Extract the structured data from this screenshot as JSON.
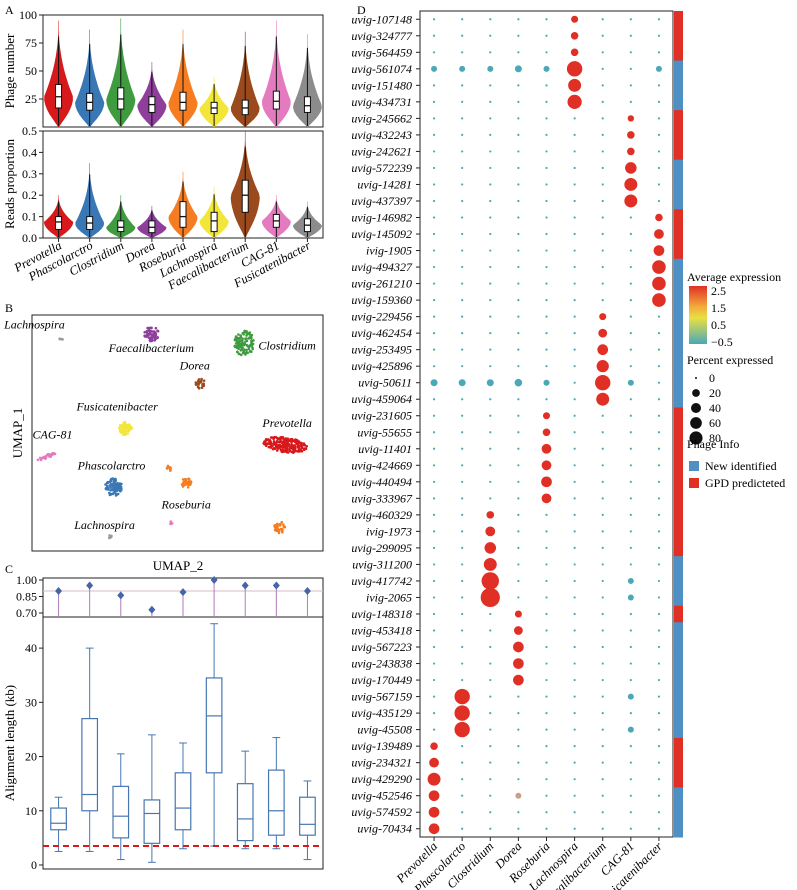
{
  "chart_data": [
    {
      "id": "A_top",
      "type": "violin",
      "panel_label": "A",
      "ylabel": "Phage number",
      "ylim": [
        0,
        100
      ],
      "yticks": [
        25,
        50,
        75,
        100
      ],
      "categories": [
        "Prevotella",
        "Phascolarctro",
        "Clostridium",
        "Dorea",
        "Roseburia",
        "Lachnospira",
        "Faecalibacterium",
        "CAG-81",
        "Fusicatenibacter"
      ],
      "colors": [
        "#d7191c",
        "#3a78b5",
        "#3f9b3f",
        "#8e3f9b",
        "#f57c20",
        "#f2e63a",
        "#9a4a1c",
        "#e57bbf",
        "#8c8c8c"
      ],
      "median": [
        27,
        22,
        25,
        20,
        22,
        17,
        17,
        23,
        19
      ],
      "q1": [
        17,
        15,
        16,
        13,
        15,
        12,
        11,
        16,
        13
      ],
      "q3": [
        38,
        30,
        35,
        27,
        31,
        22,
        24,
        32,
        27
      ],
      "max": [
        95,
        87,
        97,
        58,
        87,
        45,
        85,
        95,
        83
      ]
    },
    {
      "id": "A_bottom",
      "type": "violin",
      "ylabel": "Reads proportion",
      "ylim": [
        0,
        0.5
      ],
      "yticks": [
        0.0,
        0.1,
        0.2,
        0.3,
        0.4,
        0.5
      ],
      "ytick_labels": [
        "0.0",
        "0.1",
        "0.2",
        "0.3",
        "0.4",
        "0.5"
      ],
      "categories": [
        "Prevotella",
        "Phascolarctro",
        "Clostridium",
        "Dorea",
        "Roseburia",
        "Lachnospira",
        "Faecalibacterium",
        "CAG-81",
        "Fusicatenibacter"
      ],
      "median": [
        0.075,
        0.07,
        0.05,
        0.05,
        0.1,
        0.08,
        0.2,
        0.08,
        0.06
      ],
      "q1": [
        0.04,
        0.04,
        0.03,
        0.025,
        0.05,
        0.03,
        0.12,
        0.05,
        0.03
      ],
      "q3": [
        0.1,
        0.1,
        0.08,
        0.08,
        0.17,
        0.12,
        0.27,
        0.11,
        0.09
      ],
      "max": [
        0.2,
        0.35,
        0.2,
        0.15,
        0.31,
        0.24,
        0.5,
        0.2,
        0.17
      ]
    },
    {
      "id": "B",
      "type": "scatter",
      "panel_label": "B",
      "xlabel": "UMAP_2",
      "ylabel": "UMAP_1",
      "clusters": [
        {
          "name": "Lachnospira",
          "x": 0.1,
          "y": 0.1,
          "size": 3,
          "label": "Lachnospira"
        },
        {
          "name": "Faecalibacterium",
          "x": 0.41,
          "y": 0.08,
          "size": 50,
          "label": "Faecalibacterium"
        },
        {
          "name": "Clostridium",
          "x": 0.73,
          "y": 0.12,
          "size": 90,
          "label": "Clostridium"
        },
        {
          "name": "Dorea",
          "x": 0.58,
          "y": 0.29,
          "size": 25,
          "label": "Dorea"
        },
        {
          "name": "Fusicatenibacter",
          "x": 0.32,
          "y": 0.48,
          "size": 40,
          "label": "Fusicatenibacter"
        },
        {
          "name": "Prevotella",
          "x": 0.87,
          "y": 0.55,
          "size": 170,
          "label": "Prevotella"
        },
        {
          "name": "CAG-81",
          "x": 0.05,
          "y": 0.6,
          "size": 30,
          "label": "CAG-81"
        },
        {
          "name": "Phascolarctro",
          "x": 0.28,
          "y": 0.73,
          "size": 70,
          "label": "Phascolarctro"
        },
        {
          "name": "Roseburia",
          "x": 0.53,
          "y": 0.71,
          "size": 25,
          "label": "Roseburia"
        },
        {
          "name": "Lachnospira2",
          "x": 0.27,
          "y": 0.94,
          "size": 5,
          "label": "Lachnospira"
        },
        {
          "name": "orange2",
          "x": 0.85,
          "y": 0.9,
          "size": 30,
          "label": ""
        },
        {
          "name": "orange3",
          "x": 0.47,
          "y": 0.65,
          "size": 8,
          "label": ""
        },
        {
          "name": "pink2",
          "x": 0.48,
          "y": 0.88,
          "size": 5,
          "label": ""
        }
      ]
    },
    {
      "id": "C_top",
      "type": "lollipop",
      "panel_label": "C",
      "ylim": [
        0.7,
        1.0
      ],
      "yticks": [
        0.7,
        0.85,
        1.0
      ],
      "ytick_labels": [
        "0.70",
        "0.85",
        "1.00"
      ],
      "reference_line": 0.9,
      "values": [
        0.9,
        0.95,
        0.86,
        0.73,
        0.89,
        1.0,
        0.95,
        0.95,
        0.9
      ]
    },
    {
      "id": "C_bottom",
      "type": "box",
      "ylabel": "Alignment length (kb)",
      "ylim": [
        0,
        45
      ],
      "yticks": [
        0,
        10,
        20,
        30,
        40
      ],
      "threshold": 3.5,
      "boxes": [
        {
          "min": 2.5,
          "q1": 6.5,
          "median": 7.7,
          "q3": 10.5,
          "max": 12.5
        },
        {
          "min": 2.5,
          "q1": 10,
          "median": 13,
          "q3": 27,
          "max": 40
        },
        {
          "min": 1,
          "q1": 5,
          "median": 9,
          "q3": 14.5,
          "max": 20.5
        },
        {
          "min": 0.5,
          "q1": 4,
          "median": 9.5,
          "q3": 12,
          "max": 24
        },
        {
          "min": 3,
          "q1": 6.5,
          "median": 10.5,
          "q3": 17,
          "max": 22.5
        },
        {
          "min": 3.5,
          "q1": 17,
          "median": 27.5,
          "q3": 34.5,
          "max": 44.5
        },
        {
          "min": 3,
          "q1": 4.5,
          "median": 8.5,
          "q3": 15,
          "max": 21
        },
        {
          "min": 3,
          "q1": 5.5,
          "median": 10,
          "q3": 17.5,
          "max": 23.5
        },
        {
          "min": 1,
          "q1": 5.5,
          "median": 7.5,
          "q3": 12.5,
          "max": 15.5
        }
      ]
    },
    {
      "id": "D",
      "type": "dotplot",
      "panel_label": "D",
      "categories": [
        "Prevotella",
        "Phascolarcto",
        "Clostridium",
        "Dorea",
        "Roseburia",
        "Lachnospira",
        "Faecalibacterium",
        "CAG-81",
        "Fusicatenibacter"
      ],
      "rows": [
        "uvig-107148",
        "uvig-324777",
        "uvig-564459",
        "uvig-561074",
        "uvig-151480",
        "uvig-434731",
        "uvig-245662",
        "uvig-432243",
        "uvig-242621",
        "uvig-572239",
        "uvig-14281",
        "uvig-437397",
        "uvig-146982",
        "uvig-145092",
        "ivig-1905",
        "uvig-494327",
        "uvig-261210",
        "uvig-159360",
        "uvig-229456",
        "uvig-462454",
        "uvig-253495",
        "uvig-425896",
        "uvig-50611",
        "uvig-459064",
        "uvig-231605",
        "uvig-55655",
        "uvig-11401",
        "uvig-424669",
        "uvig-440494",
        "uvig-333967",
        "uvig-460329",
        "ivig-1973",
        "uvig-299095",
        "uvig-311200",
        "uvig-417742",
        "ivig-2065",
        "uvig-148318",
        "uvig-453418",
        "uvig-567223",
        "uvig-243838",
        "uvig-170449",
        "uvig-567159",
        "uvig-435129",
        "uvig-45508",
        "uvig-139489",
        "uvig-234321",
        "uvig-429290",
        "uvig-452546",
        "uvig-574592",
        "uvig-70434"
      ],
      "row_genus": [
        5,
        5,
        5,
        5,
        5,
        5,
        7,
        7,
        7,
        7,
        7,
        7,
        8,
        8,
        8,
        8,
        8,
        8,
        6,
        6,
        6,
        6,
        6,
        6,
        4,
        4,
        4,
        4,
        4,
        4,
        2,
        2,
        2,
        2,
        2,
        2,
        3,
        3,
        3,
        3,
        3,
        1,
        1,
        1,
        0,
        0,
        0,
        0,
        0,
        0
      ],
      "row_pct": [
        8,
        10,
        10,
        60,
        40,
        50,
        6,
        10,
        10,
        30,
        40,
        40,
        10,
        20,
        25,
        45,
        45,
        45,
        8,
        15,
        25,
        35,
        60,
        40,
        8,
        10,
        20,
        20,
        25,
        20,
        10,
        20,
        30,
        40,
        80,
        100,
        8,
        15,
        25,
        25,
        25,
        60,
        60,
        60,
        10,
        20,
        40,
        25,
        25,
        25
      ],
      "row_info": [
        "GPD",
        "GPD",
        "GPD",
        "New",
        "New",
        "New",
        "GPD",
        "GPD",
        "GPD",
        "New",
        "New",
        "New",
        "GPD",
        "GPD",
        "GPD",
        "New",
        "New",
        "New",
        "New",
        "New",
        "New",
        "New",
        "New",
        "New",
        "GPD",
        "GPD",
        "GPD",
        "GPD",
        "GPD",
        "GPD",
        "GPD",
        "GPD",
        "GPD",
        "New",
        "New",
        "New",
        "GPD",
        "New",
        "New",
        "New",
        "New",
        "New",
        "New",
        "New",
        "GPD",
        "GPD",
        "GPD",
        "New",
        "New",
        "New"
      ],
      "scattered_hits": [
        {
          "row": "uvig-561074",
          "col": 0,
          "pct": 5
        },
        {
          "row": "uvig-561074",
          "col": 1,
          "pct": 5
        },
        {
          "row": "uvig-561074",
          "col": 2,
          "pct": 5
        },
        {
          "row": "uvig-561074",
          "col": 3,
          "pct": 8
        },
        {
          "row": "uvig-561074",
          "col": 4,
          "pct": 5
        },
        {
          "row": "uvig-561074",
          "col": 8,
          "pct": 5
        },
        {
          "row": "uvig-50611",
          "col": 0,
          "pct": 8
        },
        {
          "row": "uvig-50611",
          "col": 1,
          "pct": 8
        },
        {
          "row": "uvig-50611",
          "col": 2,
          "pct": 8
        },
        {
          "row": "uvig-50611",
          "col": 3,
          "pct": 10
        },
        {
          "row": "uvig-50611",
          "col": 4,
          "pct": 5
        },
        {
          "row": "uvig-50611",
          "col": 7,
          "pct": 5
        },
        {
          "row": "uvig-437397",
          "col": 7,
          "pct": 40
        },
        {
          "row": "uvig-417742",
          "col": 7,
          "pct": 5
        },
        {
          "row": "ivig-2065",
          "col": 7,
          "pct": 5
        },
        {
          "row": "uvig-567159",
          "col": 7,
          "pct": 5
        },
        {
          "row": "uvig-45508",
          "col": 7,
          "pct": 5
        },
        {
          "row": "uvig-452546",
          "col": 3,
          "pct": 5
        }
      ],
      "legend": {
        "color_title": "Average expression",
        "color_ticks": [
          "2.5",
          "1.5",
          "0.5",
          "−0.5"
        ],
        "size_title": "Percent expressed",
        "size_values": [
          0,
          20,
          40,
          60,
          80
        ],
        "size_labels": [
          "0",
          "20",
          "40",
          "60",
          "80"
        ],
        "info_title": "Phage Info",
        "info_items": [
          {
            "label": "New identified",
            "color": "#4e8fc4"
          },
          {
            "label": "GPD predicteted",
            "color": "#e03025"
          }
        ],
        "colors": {
          "high": "#e03025",
          "mid": "#f2e63a",
          "low": "#4aa8b8",
          "new": "#4e8fc4",
          "gpd": "#e03025"
        }
      }
    }
  ]
}
